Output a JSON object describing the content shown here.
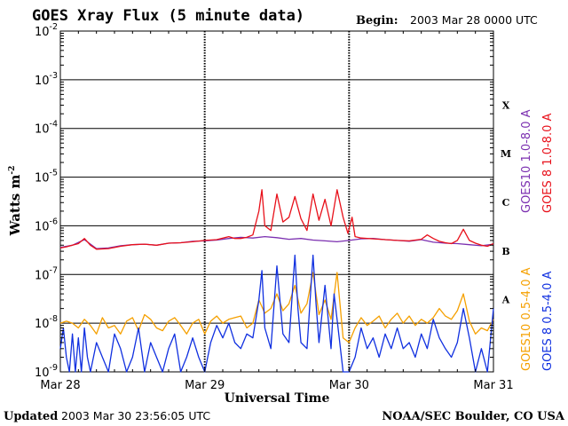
{
  "header": {
    "title": "GOES Xray Flux (5 minute data)",
    "begin_label": "Begin:",
    "begin_value": "2003 Mar 28 0000 UTC"
  },
  "footer": {
    "updated_label": "Updated",
    "updated_value": "2003 Mar 30 23:56:05 UTC",
    "credit": "NOAA/SEC Boulder, CO USA"
  },
  "colors": {
    "goes10_long": "#7b2fb0",
    "goes8_long": "#e8101a",
    "goes10_short": "#f5a000",
    "goes8_short": "#1030e0"
  },
  "chart_data": {
    "type": "line",
    "title": "GOES Xray Flux (5 minute data)",
    "xlabel": "Universal Time",
    "ylabel": "Watts m",
    "ylabel_sup": "-2",
    "yscale": "log",
    "ylim": [
      1e-09,
      0.01
    ],
    "xlim": [
      0,
      72
    ],
    "x_unit": "hours since 2003 Mar 28 0000 UTC",
    "grid": true,
    "x_ticks": [
      {
        "label": "Mar 28",
        "value": 0
      },
      {
        "label": "Mar 29",
        "value": 24
      },
      {
        "label": "Mar 30",
        "value": 48
      },
      {
        "label": "Mar 31",
        "value": 72
      }
    ],
    "y_ticks": [
      {
        "base": "10",
        "exp": "-9",
        "value": -9
      },
      {
        "base": "10",
        "exp": "-8",
        "value": -8
      },
      {
        "base": "10",
        "exp": "-7",
        "value": -7
      },
      {
        "base": "10",
        "exp": "-6",
        "value": -6
      },
      {
        "base": "10",
        "exp": "-5",
        "value": -5
      },
      {
        "base": "10",
        "exp": "-4",
        "value": -4
      },
      {
        "base": "10",
        "exp": "-3",
        "value": -3
      },
      {
        "base": "10",
        "exp": "-2",
        "value": -2
      }
    ],
    "flare_classes": [
      {
        "label": "A",
        "log_center": -7.5
      },
      {
        "label": "B",
        "log_center": -6.5
      },
      {
        "label": "C",
        "log_center": -5.5
      },
      {
        "label": "M",
        "log_center": -4.5
      },
      {
        "label": "X",
        "log_center": -3.5
      }
    ],
    "legend": {
      "placement": "right",
      "upper": [
        {
          "name": "GOES10 1.0-8.0 A",
          "color_key": "goes10_long"
        },
        {
          "name": "GOES 8 1.0-8.0 A",
          "color_key": "goes8_long"
        }
      ],
      "lower": [
        {
          "name": "GOES10 0.5-4.0 A",
          "color_key": "goes10_short"
        },
        {
          "name": "GOES 8 0.5-4.0 A",
          "color_key": "goes8_short"
        }
      ]
    },
    "series": [
      {
        "name": "GOES10 1.0-8.0 A",
        "color_key": "goes10_long",
        "x": [
          0,
          2,
          4,
          6,
          8,
          10,
          12,
          14,
          16,
          18,
          20,
          22,
          24,
          26,
          28,
          30,
          32,
          34,
          36,
          38,
          40,
          42,
          44,
          46,
          48,
          50,
          52,
          54,
          56,
          58,
          60,
          62,
          64,
          66,
          68,
          70,
          72
        ],
        "y": [
          3.6e-07,
          4e-07,
          5.2e-07,
          3.4e-07,
          3.5e-07,
          3.9e-07,
          4.1e-07,
          4.2e-07,
          4e-07,
          4.4e-07,
          4.5e-07,
          4.8e-07,
          4.9e-07,
          5.1e-07,
          5.5e-07,
          5.8e-07,
          5.6e-07,
          6e-07,
          5.7e-07,
          5.3e-07,
          5.5e-07,
          5.1e-07,
          4.9e-07,
          4.7e-07,
          5e-07,
          5.4e-07,
          5.5e-07,
          5.2e-07,
          5e-07,
          4.8e-07,
          5.2e-07,
          4.6e-07,
          4.4e-07,
          4.3e-07,
          4.1e-07,
          3.9e-07,
          4.2e-07
        ]
      },
      {
        "name": "GOES 8 1.0-8.0 A",
        "color_key": "goes8_long",
        "x": [
          0,
          1,
          2,
          3,
          4,
          5,
          6,
          8,
          10,
          12,
          14,
          16,
          18,
          20,
          22,
          24,
          26,
          28,
          29,
          30,
          31,
          32,
          33,
          33.5,
          34,
          35,
          36,
          37,
          38,
          39,
          40,
          41,
          42,
          43,
          44,
          45,
          46,
          47,
          47.8,
          48.5,
          49,
          50,
          52,
          54,
          56,
          58,
          60,
          61,
          62,
          63,
          64,
          65,
          66,
          67,
          68,
          69,
          70,
          71,
          72
        ],
        "y": [
          3.5e-07,
          3.7e-07,
          4e-07,
          4.3e-07,
          5.5e-07,
          4e-07,
          3.3e-07,
          3.4e-07,
          3.8e-07,
          4.1e-07,
          4.2e-07,
          4e-07,
          4.4e-07,
          4.5e-07,
          4.7e-07,
          5e-07,
          5.2e-07,
          6e-07,
          5.5e-07,
          5.5e-07,
          5.8e-07,
          6.5e-07,
          2e-06,
          5.5e-06,
          1e-06,
          8e-07,
          4.5e-06,
          1.2e-06,
          1.5e-06,
          4e-06,
          1.4e-06,
          8e-07,
          4.5e-06,
          1.3e-06,
          3.5e-06,
          1e-06,
          5.5e-06,
          1.5e-06,
          7e-07,
          1.5e-06,
          6e-07,
          5.6e-07,
          5.4e-07,
          5.2e-07,
          5e-07,
          4.9e-07,
          5.3e-07,
          6.5e-07,
          5.5e-07,
          4.8e-07,
          4.5e-07,
          4.3e-07,
          5e-07,
          8.5e-07,
          5e-07,
          4.4e-07,
          4e-07,
          3.8e-07,
          4.3e-07
        ]
      },
      {
        "name": "GOES10 0.5-4.0 A",
        "color_key": "goes10_short",
        "x": [
          0,
          1,
          2,
          3,
          4,
          5,
          6,
          7,
          8,
          9,
          10,
          11,
          12,
          13,
          14,
          15,
          16,
          17,
          18,
          19,
          20,
          21,
          22,
          23,
          24,
          25,
          26,
          27,
          28,
          29,
          30,
          31,
          32,
          33,
          34,
          35,
          36,
          37,
          38,
          39,
          40,
          41,
          42,
          43,
          44,
          45,
          46,
          47,
          48,
          49,
          50,
          51,
          52,
          53,
          54,
          55,
          56,
          57,
          58,
          59,
          60,
          61,
          62,
          63,
          64,
          65,
          66,
          67,
          68,
          69,
          70,
          71,
          72
        ],
        "y": [
          1e-08,
          1.1e-08,
          1e-08,
          8e-09,
          1.2e-08,
          9e-09,
          6e-09,
          1.3e-08,
          8e-09,
          9e-09,
          6e-09,
          1.1e-08,
          1.3e-08,
          7e-09,
          1.5e-08,
          1.2e-08,
          8e-09,
          7e-09,
          1.1e-08,
          1.3e-08,
          9e-09,
          6e-09,
          1e-08,
          1.2e-08,
          6e-09,
          1.1e-08,
          1.4e-08,
          1e-08,
          1.2e-08,
          1.3e-08,
          1.4e-08,
          8e-09,
          1e-08,
          3e-08,
          1.6e-08,
          2e-08,
          4e-08,
          1.8e-08,
          2.5e-08,
          6e-08,
          1.6e-08,
          2.5e-08,
          1.1e-07,
          1.5e-08,
          3e-08,
          1.2e-08,
          1.1e-07,
          5e-09,
          4e-09,
          8e-09,
          1.3e-08,
          9e-09,
          1.1e-08,
          1.4e-08,
          8e-09,
          1.2e-08,
          1.6e-08,
          1e-08,
          1.4e-08,
          9e-09,
          1.2e-08,
          1e-08,
          1.3e-08,
          2e-08,
          1.4e-08,
          1.2e-08,
          1.8e-08,
          4e-08,
          1.1e-08,
          6e-09,
          8e-09,
          7e-09,
          1.2e-08
        ]
      },
      {
        "name": "GOES 8 0.5-4.0 A",
        "color_key": "goes8_short",
        "x": [
          0,
          0.5,
          1,
          1.5,
          2,
          2.5,
          3,
          3.5,
          4,
          4.5,
          5,
          6,
          7,
          8,
          9,
          10,
          11,
          12,
          13,
          14,
          15,
          16,
          17,
          18,
          19,
          20,
          21,
          22,
          23,
          24,
          25,
          26,
          27,
          28,
          29,
          30,
          31,
          32,
          33,
          33.5,
          34,
          35,
          36,
          36.5,
          37,
          38,
          39,
          39.5,
          40,
          41,
          42,
          42.5,
          43,
          44,
          45,
          45.5,
          46,
          47,
          48,
          49,
          50,
          51,
          52,
          53,
          54,
          55,
          56,
          57,
          58,
          59,
          60,
          61,
          62,
          63,
          64,
          65,
          66,
          67,
          68,
          69,
          70,
          71,
          72
        ],
        "y": [
          3e-09,
          8e-09,
          2e-09,
          1e-09,
          6e-09,
          1e-09,
          5e-09,
          1e-09,
          8e-09,
          2e-09,
          1e-09,
          4e-09,
          2e-09,
          1e-09,
          6e-09,
          3e-09,
          1e-09,
          2e-09,
          8e-09,
          1e-09,
          4e-09,
          2e-09,
          1e-09,
          3e-09,
          6e-09,
          1e-09,
          2e-09,
          5e-09,
          2e-09,
          1e-09,
          4e-09,
          9e-09,
          5e-09,
          1e-08,
          4e-09,
          3e-09,
          6e-09,
          5e-09,
          3e-08,
          1.2e-07,
          8e-09,
          3e-09,
          1.5e-07,
          3e-08,
          6e-09,
          4e-09,
          2.5e-07,
          2e-08,
          4e-09,
          3e-09,
          2.5e-07,
          2.5e-08,
          4e-09,
          6e-08,
          3e-09,
          4e-08,
          1.2e-08,
          1e-09,
          1e-09,
          2e-09,
          8e-09,
          3e-09,
          5e-09,
          2e-09,
          6e-09,
          3e-09,
          8e-09,
          3e-09,
          4e-09,
          2e-09,
          6e-09,
          3e-09,
          1.2e-08,
          5e-09,
          3e-09,
          2e-09,
          4e-09,
          2e-08,
          5e-09,
          1e-09,
          3e-09,
          1e-09,
          2e-08
        ]
      }
    ]
  }
}
